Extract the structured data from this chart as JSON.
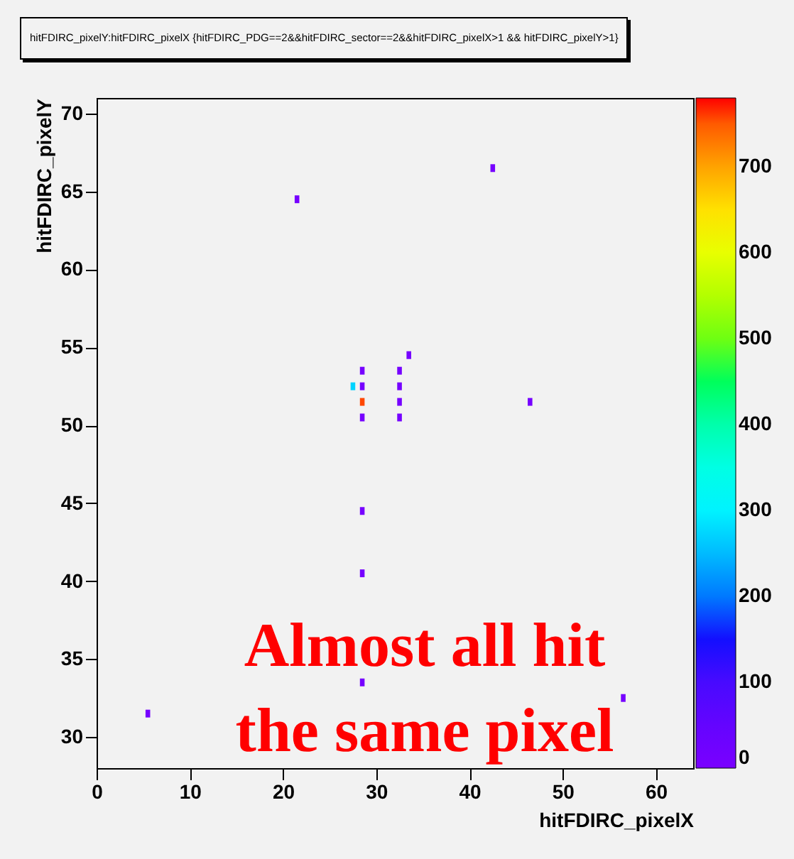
{
  "chart_data": {
    "type": "scatter",
    "title": "hitFDIRC_pixelY:hitFDIRC_pixelX {hitFDIRC_PDG==2&&hitFDIRC_sector==2&&hitFDIRC_pixelX>1 && hitFDIRC_pixelY>1}",
    "xlabel": "hitFDIRC_pixelX",
    "ylabel": "hitFDIRC_pixelY",
    "x": [
      5.5,
      21.5,
      42.5,
      28.5,
      28.5,
      28.5,
      56.5,
      46.5,
      33.5,
      28.5,
      28.5,
      28.5,
      28.5,
      27.5,
      32.5,
      32.5,
      32.5,
      32.5
    ],
    "values": [
      31.5,
      64.5,
      66.5,
      44.5,
      40.5,
      33.5,
      32.5,
      51.5,
      54.5,
      50.5,
      51.5,
      52.5,
      53.5,
      52.5,
      50.5,
      51.5,
      52.5,
      53.5
    ],
    "cvalues": [
      10,
      10,
      10,
      10,
      10,
      10,
      10,
      10,
      10,
      10,
      760,
      10,
      10,
      270,
      10,
      10,
      10,
      10
    ],
    "marker": "square",
    "xlim": [
      0,
      64
    ],
    "xticks": [
      0,
      10,
      20,
      30,
      40,
      50,
      60
    ],
    "ylim": [
      28,
      71
    ],
    "yticks": [
      30,
      35,
      40,
      45,
      50,
      55,
      60,
      65,
      70
    ],
    "clim": [
      0,
      780
    ],
    "cticks": [
      0,
      100,
      200,
      300,
      400,
      500,
      600,
      700
    ],
    "annotations": [
      "Almost all hit\nthe same pixel"
    ]
  }
}
